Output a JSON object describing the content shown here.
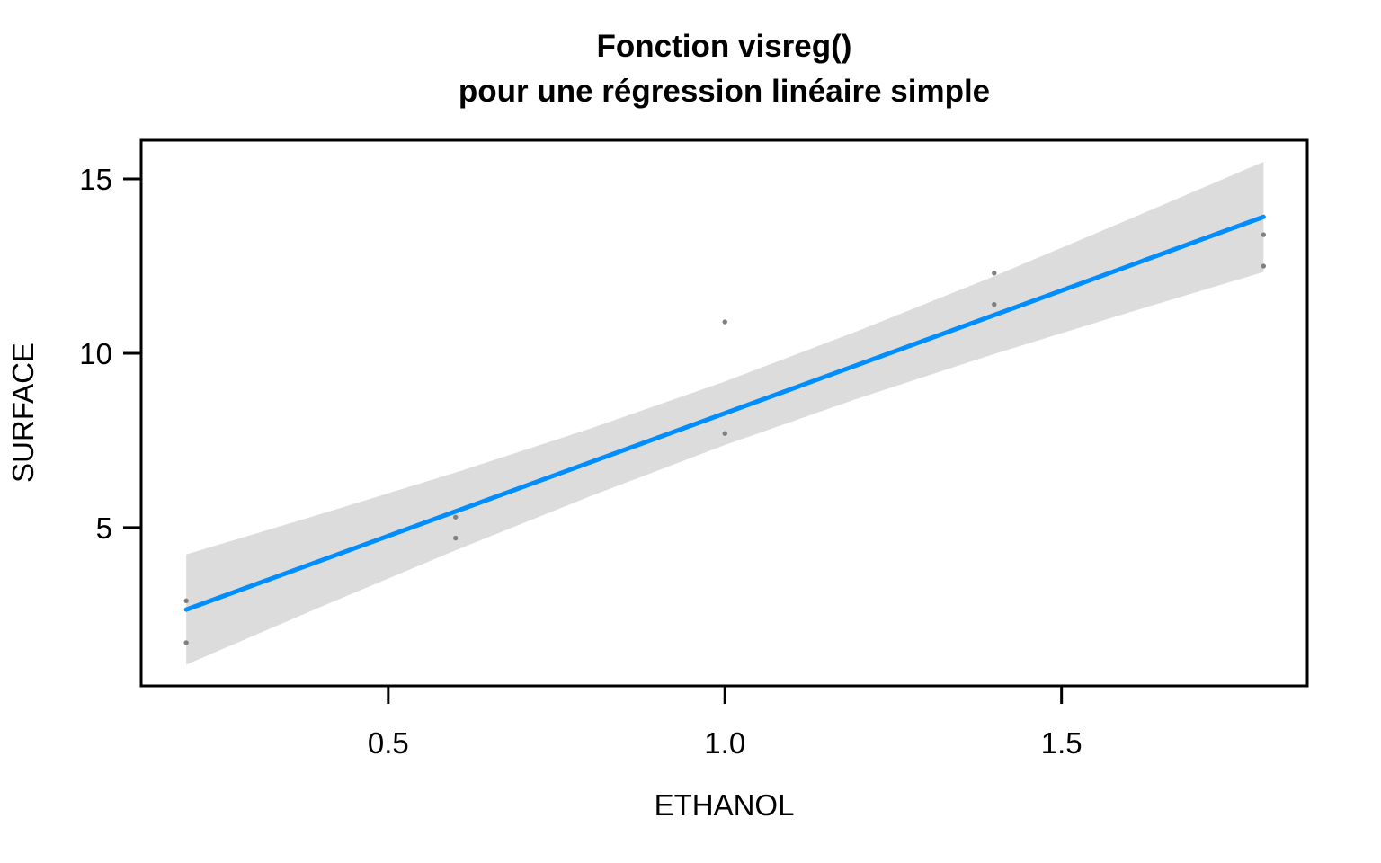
{
  "title": {
    "line1": "Fonction visreg()",
    "line2": "pour une régression linéaire simple"
  },
  "chart_data": {
    "type": "scatter",
    "title": "Fonction visreg()\npour une régression linéaire simple",
    "xlabel": "ETHANOL",
    "ylabel": "SURFACE",
    "xlim": [
      0.133,
      1.865
    ],
    "ylim": [
      0.46,
      16.11
    ],
    "xticks": {
      "values": [
        0.5,
        1.0,
        1.5
      ],
      "labels": [
        "0.5",
        "1.0",
        "1.5"
      ]
    },
    "yticks": {
      "values": [
        5,
        10,
        15
      ],
      "labels": [
        "5",
        "10",
        "15"
      ]
    },
    "grid": false,
    "legend_position": "none",
    "points": {
      "x": [
        0.2,
        0.2,
        0.6,
        0.6,
        1.0,
        1.0,
        1.4,
        1.4,
        1.8,
        1.8
      ],
      "y": [
        2.9,
        1.7,
        5.3,
        4.7,
        10.9,
        7.7,
        12.3,
        11.4,
        13.4,
        12.5
      ]
    },
    "regression_line": {
      "intercept": 1.24,
      "slope": 7.04,
      "x_start": 0.2,
      "x_end": 1.8
    },
    "confidence_band": {
      "x": [
        0.2,
        0.4,
        0.6,
        0.8,
        1.0,
        1.2,
        1.4,
        1.6,
        1.8
      ],
      "lower": [
        1.07,
        2.73,
        4.35,
        5.9,
        7.37,
        8.72,
        9.98,
        11.17,
        12.33
      ],
      "upper": [
        4.23,
        5.39,
        6.58,
        7.84,
        9.19,
        10.66,
        12.21,
        13.84,
        15.49
      ]
    },
    "colors": {
      "line": "#008DFF",
      "band": "#DCDCDC",
      "points": "#808080",
      "axis": "#000000",
      "text": "#000000"
    }
  }
}
